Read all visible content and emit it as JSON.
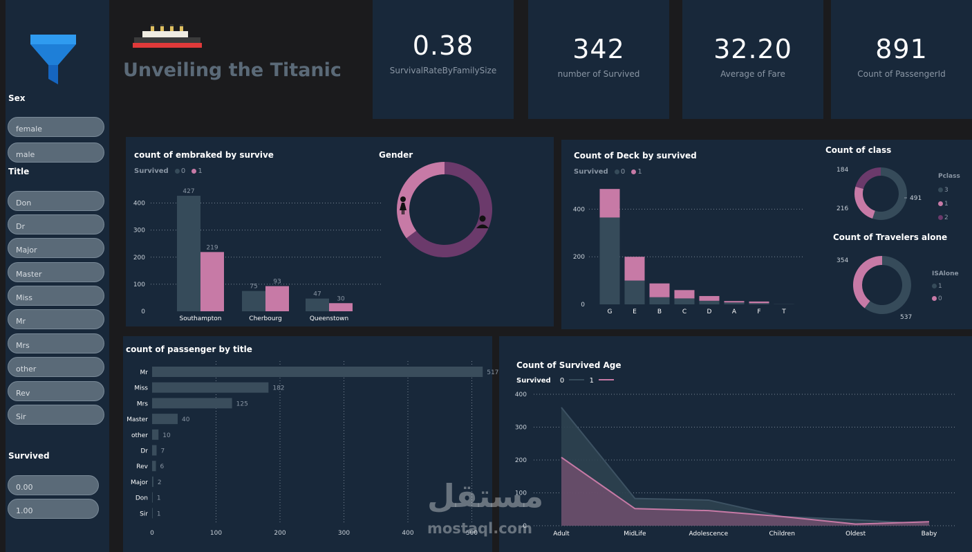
{
  "filters": {
    "sex_label": "Sex",
    "sex_options": [
      "female",
      "male"
    ],
    "title_label": "Title",
    "title_options": [
      "Don",
      "Dr",
      "Major",
      "Master",
      "Miss",
      "Mr",
      "Mrs",
      "other",
      "Rev",
      "Sir"
    ],
    "survived_label": "Survived",
    "survived_options": [
      "0.00",
      "1.00"
    ]
  },
  "header": {
    "title": "Unveiling the Titanic",
    "logo_icon": "ship-icon",
    "filter_icon": "funnel-icon"
  },
  "kpis": [
    {
      "value": "0.38",
      "label": "SurvivalRateByFamilySize"
    },
    {
      "value": "342",
      "label": "number of Survived"
    },
    {
      "value": "32.20",
      "label": "Average of Fare"
    },
    {
      "value": "891",
      "label": "Count of PassengerId"
    }
  ],
  "colors": {
    "survived_0": "#364b5a",
    "survived_1": "#c77aa6",
    "class_2": "#6b3a6b",
    "background": "#18283a"
  },
  "embarked_chart": {
    "title": "count of embraked by survive",
    "legend_title": "Survived",
    "legend_items": [
      "0",
      "1"
    ]
  },
  "gender_chart": {
    "title": "Gender"
  },
  "deck_chart": {
    "title": "Count of Deck by survived",
    "legend_title": "Survived",
    "legend_items": [
      "0",
      "1"
    ]
  },
  "class_chart": {
    "title": "Count of class",
    "legend_title": "Pclass",
    "legend_items": [
      "3",
      "1",
      "2"
    ]
  },
  "alone_chart": {
    "title": "Count of Travelers alone",
    "legend_title": "ISAlone",
    "legend_items": [
      "1",
      "0"
    ]
  },
  "title_chart": {
    "title": "count of passenger by title"
  },
  "age_chart": {
    "title": "Count of Survived Age",
    "legend_title": "Survived",
    "legend_items": [
      "0",
      "1"
    ]
  },
  "watermark": {
    "text_ar": "مستقل",
    "text_en": "mostaql.com"
  },
  "chart_data": [
    {
      "type": "bar",
      "title": "count of embraked by survive",
      "categories": [
        "Southampton",
        "Cherbourg",
        "Queenstown"
      ],
      "series": [
        {
          "name": "0",
          "values": [
            427,
            75,
            47
          ]
        },
        {
          "name": "1",
          "values": [
            219,
            93,
            30
          ]
        }
      ],
      "yticks": [
        0,
        100,
        200,
        300,
        400
      ],
      "ylim": [
        0,
        450
      ]
    },
    {
      "type": "pie",
      "title": "Gender",
      "labels": [
        "male",
        "female"
      ],
      "values": [
        577,
        314
      ]
    },
    {
      "type": "bar",
      "title": "Count of Deck by survived",
      "categories": [
        "G",
        "E",
        "B",
        "C",
        "D",
        "A",
        "F",
        "T"
      ],
      "series": [
        {
          "name": "0",
          "values": [
            365,
            100,
            30,
            25,
            15,
            8,
            5,
            1
          ]
        },
        {
          "name": "1",
          "values": [
            120,
            100,
            58,
            35,
            20,
            6,
            7,
            0
          ]
        }
      ],
      "yticks": [
        0,
        200,
        400
      ],
      "ylim": [
        0,
        500
      ]
    },
    {
      "type": "pie",
      "title": "Count of class",
      "labels": [
        "3",
        "1",
        "2"
      ],
      "values": [
        491,
        216,
        184
      ],
      "value_labels": [
        "491",
        "216",
        "184"
      ]
    },
    {
      "type": "pie",
      "title": "Count of Travelers alone",
      "labels": [
        "1",
        "0"
      ],
      "values": [
        537,
        354
      ],
      "value_labels": [
        "537",
        "354"
      ]
    },
    {
      "type": "bar",
      "title": "count of passenger by title",
      "categories": [
        "Mr",
        "Miss",
        "Mrs",
        "Master",
        "other",
        "Dr",
        "Rev",
        "Major",
        "Don",
        "Sir"
      ],
      "values": [
        517,
        182,
        125,
        40,
        10,
        7,
        6,
        2,
        1,
        1
      ],
      "xticks": [
        0,
        100,
        200,
        300,
        400,
        500
      ],
      "xlim": [
        0,
        520
      ]
    },
    {
      "type": "area",
      "title": "Count of Survived Age",
      "categories": [
        "Adult",
        "MidLife",
        "Adolescence",
        "Children",
        "Oldest",
        "Baby"
      ],
      "series": [
        {
          "name": "0",
          "values": [
            360,
            83,
            78,
            28,
            18,
            5
          ]
        },
        {
          "name": "1",
          "values": [
            208,
            52,
            46,
            28,
            5,
            12
          ]
        }
      ],
      "yticks": [
        0,
        100,
        200,
        300,
        400
      ],
      "ylim": [
        0,
        400
      ]
    }
  ]
}
